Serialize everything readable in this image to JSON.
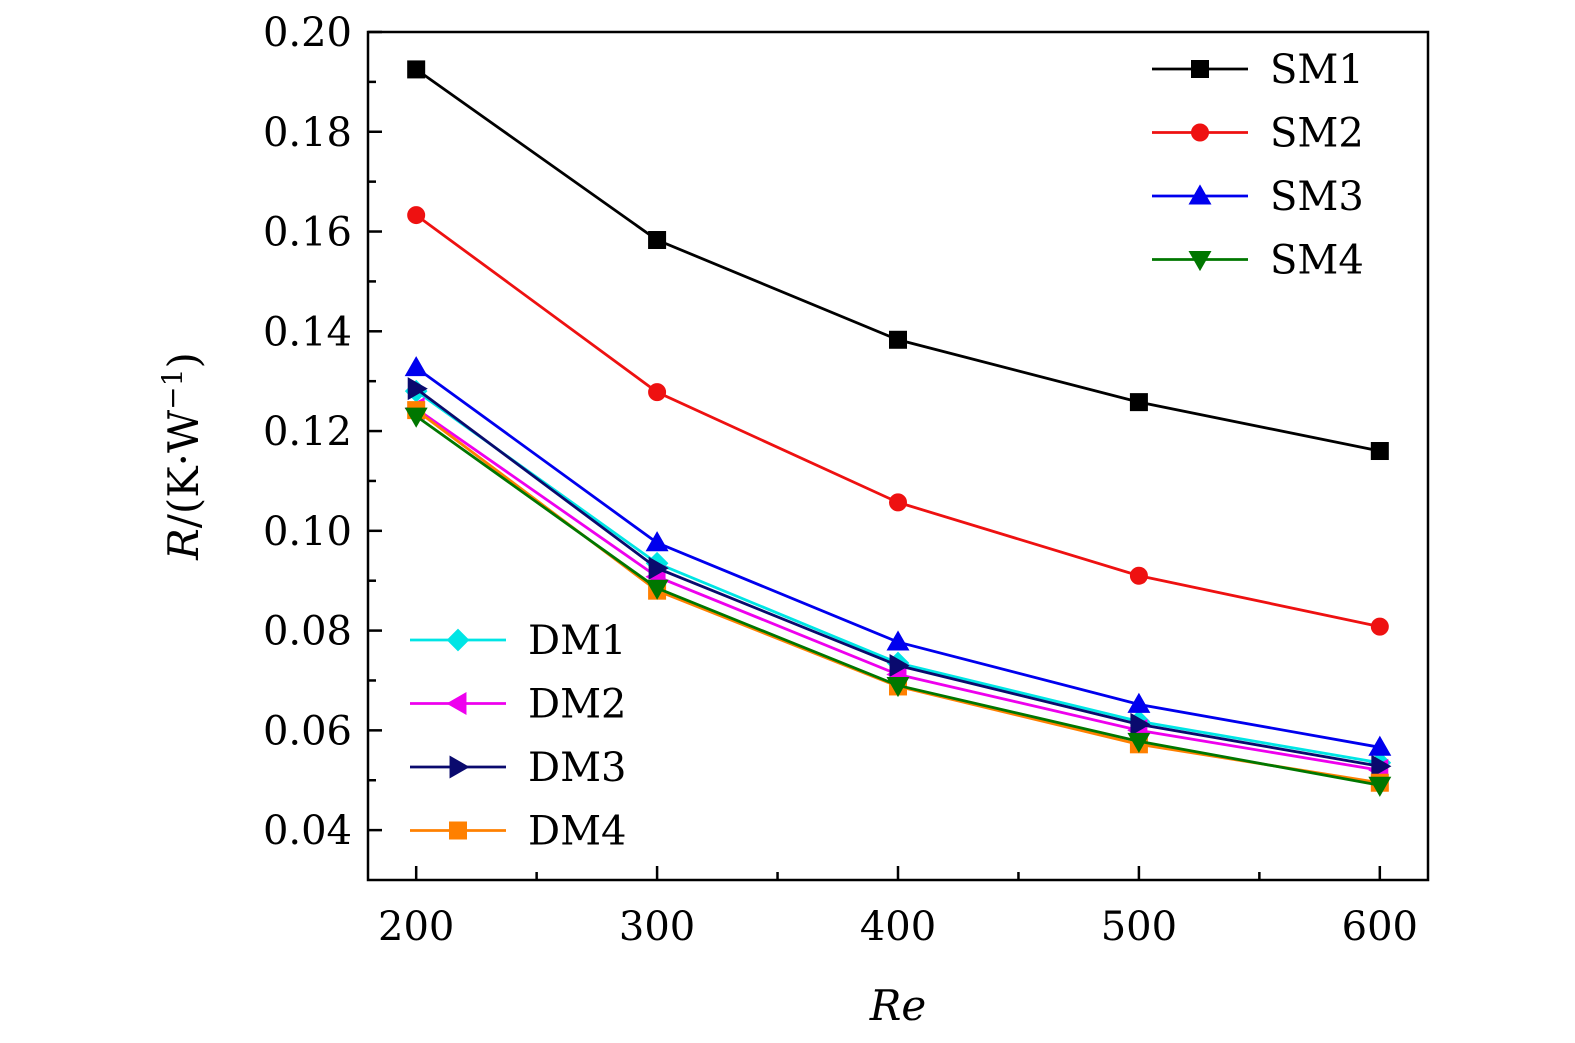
{
  "chart_data": {
    "type": "line",
    "title": "",
    "xlabel": "Re",
    "ylabel_var": "R",
    "ylabel_unit": "/(K·W",
    "ylabel_exp": "−1",
    "ylabel_close": ")",
    "x": [
      200,
      300,
      400,
      500,
      600
    ],
    "xlim": [
      180,
      620
    ],
    "ylim": [
      0.03,
      0.2
    ],
    "xticks": [
      "200",
      "300",
      "400",
      "500",
      "600"
    ],
    "yticks": [
      "0.04",
      "0.06",
      "0.08",
      "0.10",
      "0.12",
      "0.14",
      "0.16",
      "0.18",
      "0.20"
    ],
    "grid": false,
    "legend_positions": [
      "top-right",
      "bottom-left"
    ],
    "series": [
      {
        "name": "SM1",
        "color": "#000000",
        "marker": "square",
        "values": [
          0.1925,
          0.1583,
          0.1383,
          0.1258,
          0.116
        ]
      },
      {
        "name": "SM2",
        "color": "#ee1111",
        "marker": "circle",
        "values": [
          0.1633,
          0.1278,
          0.1057,
          0.091,
          0.0808
        ]
      },
      {
        "name": "SM3",
        "color": "#0000ee",
        "marker": "triangle-up",
        "values": [
          0.1327,
          0.0976,
          0.0777,
          0.0652,
          0.0566
        ]
      },
      {
        "name": "SM4",
        "color": "#007700",
        "marker": "triangle-down",
        "values": [
          0.123,
          0.0885,
          0.069,
          0.0578,
          0.049
        ]
      },
      {
        "name": "DM1",
        "color": "#00e5e5",
        "marker": "diamond",
        "values": [
          0.128,
          0.0935,
          0.0735,
          0.0618,
          0.0535
        ]
      },
      {
        "name": "DM2",
        "color": "#ee00ee",
        "marker": "triangle-left",
        "values": [
          0.1245,
          0.0908,
          0.0712,
          0.06,
          0.052
        ]
      },
      {
        "name": "DM3",
        "color": "#0a0a6e",
        "marker": "triangle-right",
        "values": [
          0.1285,
          0.0925,
          0.073,
          0.0612,
          0.0528
        ]
      },
      {
        "name": "DM4",
        "color": "#ff8000",
        "marker": "square",
        "values": [
          0.1242,
          0.088,
          0.0688,
          0.0572,
          0.0495
        ]
      }
    ]
  }
}
